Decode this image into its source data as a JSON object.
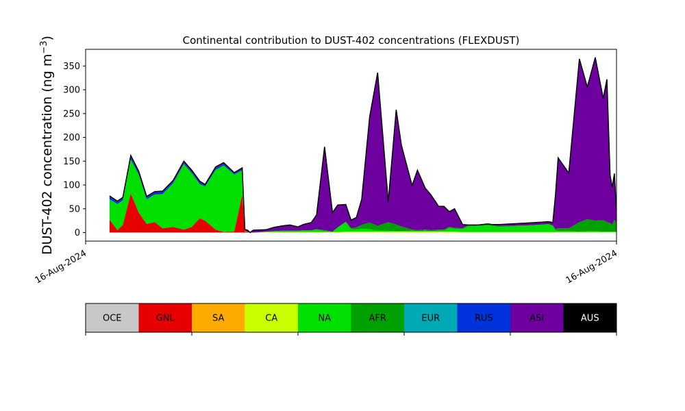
{
  "chart_data": {
    "type": "area",
    "stacked": true,
    "title": "Continental contribution to DUST-402 concentrations (FLEXDUST)",
    "ylabel": "DUST-402 concentration (ng m⁻³)",
    "ylabel_main": "DUST-402 concentration (ng m",
    "ylabel_sup": "−3",
    "ylabel_close": ")",
    "xlabel": "",
    "ylim": [
      -18,
      385
    ],
    "yticks": [
      0,
      50,
      100,
      150,
      200,
      250,
      300,
      350
    ],
    "x_range": [
      0,
      100
    ],
    "x_ticks": [
      {
        "x": 0,
        "label": "16-Aug-2024"
      },
      {
        "x": 100,
        "label": "16-Aug-2024"
      }
    ],
    "grid": false,
    "outline_color": "#000000",
    "x": [
      4.5,
      6.0,
      7.0,
      8.5,
      10.0,
      11.5,
      13.0,
      14.5,
      16.5,
      18.5,
      20.0,
      21.5,
      22.5,
      24.5,
      26.0,
      28.0,
      29.5,
      30.0,
      30.5,
      31.0,
      31.3,
      31.6,
      34.0,
      35.5,
      37.0,
      38.5,
      40.0,
      41.0,
      42.5,
      43.5,
      45.0,
      46.5,
      47.5,
      49.0,
      50.0,
      51.0,
      52.0,
      53.5,
      55.0,
      57.0,
      58.5,
      59.5,
      61.5,
      62.5,
      64.0,
      65.0,
      66.5,
      67.5,
      68.5,
      69.5,
      71.0,
      72.0,
      74.0,
      75.5,
      76.0,
      76.5,
      77.0,
      78.0,
      83.0,
      86.0,
      87.2,
      88.0,
      88.5,
      89.0,
      91.0,
      93.0,
      94.5,
      96.0,
      97.5,
      98.2,
      98.8,
      99.2,
      99.6,
      100.0,
      100.5,
      101.0,
      102.0,
      103.0,
      104.0,
      105.0
    ],
    "series": [
      {
        "name": "OCE",
        "color": "#c8c8c8",
        "values": [
          0,
          0,
          0,
          0,
          0,
          0,
          0,
          0,
          0,
          0,
          0,
          0,
          0,
          0,
          0,
          0,
          0,
          0,
          0,
          0,
          0,
          0,
          0,
          0,
          0,
          0,
          0,
          0,
          0,
          0,
          0,
          0,
          0,
          0,
          0,
          0,
          0,
          0,
          0,
          0,
          0,
          0,
          0,
          0,
          0,
          0,
          0,
          0,
          0,
          0,
          0,
          0,
          0,
          0,
          0,
          0,
          0,
          0,
          0,
          0,
          0,
          0,
          0,
          0,
          0,
          0,
          0,
          0,
          0,
          0,
          0,
          0,
          0,
          0,
          0,
          0,
          0,
          0,
          0,
          0
        ]
      },
      {
        "name": "GNL",
        "color": "#e60000",
        "values": [
          27,
          5,
          16,
          82,
          42,
          18,
          22,
          9,
          12,
          6,
          12,
          30,
          25,
          6,
          1,
          2,
          80,
          2,
          1,
          0,
          0,
          0,
          0,
          0,
          0,
          0,
          0,
          0,
          0,
          0,
          0,
          0,
          0,
          0,
          0,
          0,
          0,
          0,
          0,
          0,
          0,
          0,
          0,
          0,
          0,
          0,
          0,
          0,
          0,
          0,
          0,
          0,
          0,
          0,
          0,
          0,
          0,
          0,
          0,
          0,
          0,
          0,
          0,
          0,
          0,
          0,
          0,
          0,
          0,
          0,
          0,
          0,
          0,
          0,
          0,
          0,
          0,
          0,
          0,
          0
        ]
      },
      {
        "name": "SA",
        "color": "#ffaa00",
        "values": [
          0,
          0,
          0,
          0,
          0,
          0,
          0,
          0,
          0,
          0,
          0,
          0,
          0,
          0,
          0,
          0,
          0,
          0,
          0,
          0,
          0,
          0,
          0,
          0,
          0,
          0,
          0,
          0,
          0,
          0,
          0,
          0,
          0,
          0,
          0,
          0,
          0,
          0,
          0,
          0,
          0,
          0,
          0,
          0,
          0,
          0,
          0,
          0,
          0,
          0,
          0,
          0,
          0,
          0,
          0,
          0,
          0,
          0,
          0,
          0,
          0,
          0,
          0,
          0,
          0,
          0,
          0,
          0,
          0,
          0,
          0,
          0,
          0,
          0,
          0,
          0,
          0,
          0,
          0,
          0
        ]
      },
      {
        "name": "CA",
        "color": "#c8ff00",
        "values": [
          0,
          0,
          0,
          0,
          0,
          0,
          0,
          0,
          0,
          0,
          0,
          0,
          0,
          0,
          0,
          0,
          0,
          0,
          0,
          0,
          0,
          0,
          1,
          1,
          1,
          1,
          1,
          1,
          1,
          1,
          1,
          1,
          1,
          2,
          2,
          2,
          2,
          2,
          2,
          2,
          2,
          2,
          2,
          2,
          2,
          2,
          2,
          2,
          2,
          2,
          1,
          1,
          1,
          1,
          1,
          1,
          1,
          1,
          1,
          1,
          1,
          1,
          1,
          1,
          1,
          1,
          1,
          1,
          1,
          1,
          1,
          1,
          1,
          1,
          1,
          1,
          1,
          1,
          1,
          1
        ]
      },
      {
        "name": "NA",
        "color": "#00e000",
        "values": [
          43,
          55,
          52,
          72,
          80,
          52,
          58,
          72,
          92,
          138,
          113,
          72,
          72,
          126,
          140,
          120,
          51,
          2,
          0,
          0,
          0,
          0,
          1,
          2,
          2,
          2,
          2,
          3,
          3,
          5,
          2,
          0,
          10,
          20,
          5,
          4,
          6,
          5,
          2,
          2,
          1,
          1,
          2,
          1,
          2,
          1,
          2,
          2,
          8,
          6,
          6,
          12,
          13,
          14,
          14,
          13,
          12,
          11,
          14,
          16,
          17,
          14,
          4,
          2,
          2,
          1,
          2,
          2,
          1,
          1,
          1,
          1,
          1,
          1,
          1,
          2,
          1,
          1,
          1,
          1
        ]
      },
      {
        "name": "AFR",
        "color": "#00a000",
        "values": [
          0,
          0,
          0,
          0,
          0,
          0,
          0,
          0,
          0,
          0,
          0,
          0,
          0,
          0,
          0,
          0,
          0,
          0,
          0,
          0,
          0,
          0,
          0,
          0,
          1,
          1,
          1,
          1,
          1,
          1,
          2,
          1,
          0,
          1,
          2,
          5,
          8,
          14,
          10,
          18,
          14,
          10,
          2,
          2,
          2,
          2,
          2,
          2,
          2,
          2,
          2,
          2,
          2,
          2,
          2,
          2,
          2,
          2,
          0,
          0,
          0,
          0,
          2,
          6,
          6,
          20,
          25,
          22,
          24,
          20,
          18,
          15,
          25,
          18,
          2,
          2,
          4,
          4,
          4,
          4
        ]
      },
      {
        "name": "EUR",
        "color": "#00aab4",
        "values": [
          0,
          0,
          0,
          0,
          0,
          0,
          0,
          0,
          0,
          0,
          0,
          0,
          0,
          0,
          0,
          0,
          0,
          0,
          0,
          0,
          0,
          0,
          0,
          0,
          0,
          0,
          0,
          0,
          0,
          0,
          0,
          0,
          0,
          0,
          0,
          0,
          0,
          0,
          0,
          0,
          0,
          0,
          0,
          0,
          0,
          0,
          0,
          0,
          0,
          0,
          0,
          0,
          0,
          0,
          0,
          0,
          0,
          0,
          0,
          0,
          0,
          0,
          0,
          0,
          0,
          0,
          0,
          0,
          0,
          0,
          0,
          0,
          0,
          0,
          0,
          0,
          0,
          0,
          0,
          0
        ]
      },
      {
        "name": "RUS",
        "color": "#0032dc",
        "values": [
          5,
          4,
          4,
          5,
          4,
          4,
          4,
          4,
          3,
          3,
          3,
          3,
          2,
          3,
          3,
          2,
          3,
          1,
          0,
          0,
          0,
          0,
          0,
          0,
          0,
          0,
          0,
          0,
          0,
          0,
          0,
          0,
          0,
          0,
          0,
          0,
          0,
          0,
          0,
          0,
          0,
          0,
          0,
          0,
          0,
          0,
          0,
          0,
          0,
          0,
          0,
          0,
          0,
          0,
          0,
          0,
          0,
          0,
          0,
          0,
          0,
          0,
          0,
          0,
          0,
          0,
          0,
          0,
          0,
          0,
          0,
          0,
          0,
          0,
          0,
          0,
          0,
          0,
          0,
          0
        ]
      },
      {
        "name": "ASI",
        "color": "#6e00a0",
        "values": [
          2,
          2,
          2,
          3,
          3,
          2,
          2,
          2,
          3,
          3,
          3,
          3,
          2,
          3,
          3,
          2,
          2,
          1,
          4,
          0,
          3,
          5,
          4,
          8,
          10,
          12,
          8,
          12,
          16,
          30,
          175,
          40,
          47,
          36,
          17,
          21,
          54,
          222,
          322,
          43,
          241,
          170,
          93,
          126,
          87,
          75,
          49,
          49,
          32,
          40,
          8,
          1,
          0,
          1,
          1,
          1,
          2,
          3,
          5,
          5,
          5,
          6,
          72,
          148,
          116,
          343,
          278,
          343,
          256,
          300,
          100,
          78,
          97,
          23,
          19,
          34,
          8,
          11,
          11,
          13
        ]
      },
      {
        "name": "AUS",
        "color": "#000000",
        "values": [
          0,
          0,
          0,
          0,
          0,
          0,
          0,
          0,
          0,
          0,
          0,
          0,
          0,
          0,
          0,
          0,
          0,
          0,
          0,
          0,
          0,
          0,
          0,
          0,
          0,
          0,
          0,
          0,
          0,
          0,
          0,
          0,
          0,
          0,
          0,
          0,
          0,
          0,
          0,
          0,
          0,
          0,
          0,
          0,
          0,
          0,
          0,
          0,
          0,
          0,
          0,
          0,
          0,
          0,
          0,
          0,
          0,
          0,
          0,
          0,
          0,
          0,
          0,
          0,
          0,
          0,
          0,
          0,
          0,
          0,
          0,
          0,
          0,
          0,
          0,
          0,
          0,
          0,
          0,
          0
        ]
      }
    ],
    "legend": [
      "OCE",
      "GNL",
      "SA",
      "CA",
      "NA",
      "AFR",
      "EUR",
      "RUS",
      "ASI",
      "AUS"
    ],
    "legend_text_colors": [
      "#000000",
      "#000000",
      "#000000",
      "#000000",
      "#000000",
      "#000000",
      "#000000",
      "#000000",
      "#000000",
      "#ffffff"
    ],
    "legend_placement": "bottom"
  }
}
